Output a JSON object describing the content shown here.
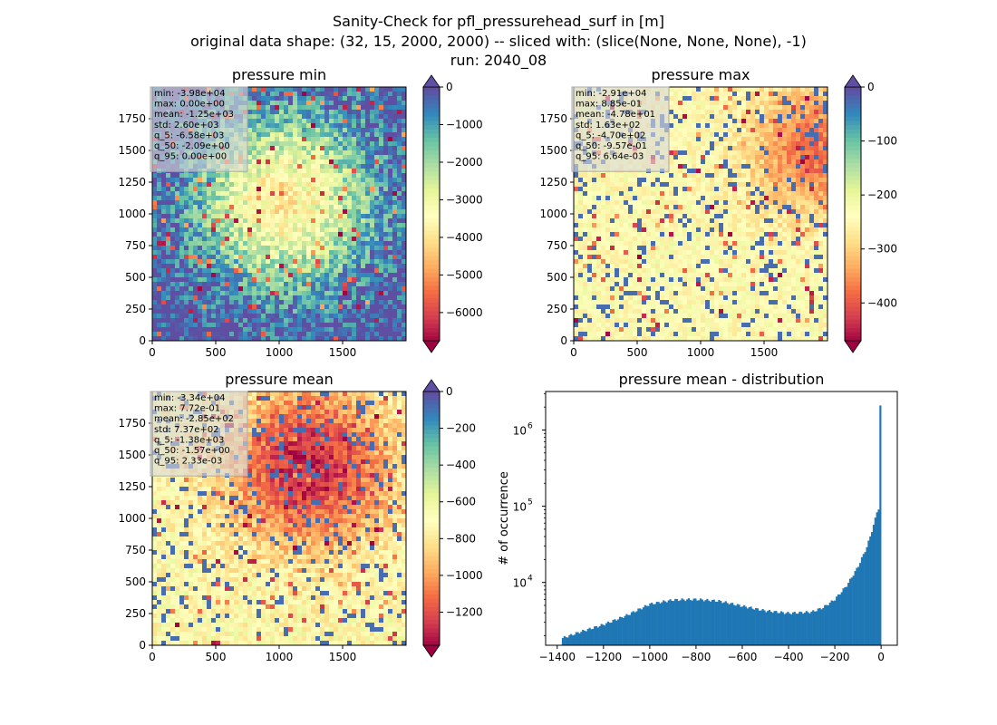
{
  "suptitle": [
    "Sanity-Check for pfl_pressurehead_surf in [m]",
    "original data shape: (32, 15, 2000, 2000) -- sliced with: (slice(None, None, None), -1)",
    "run: 2040_08"
  ],
  "colors": {
    "spectral_dark_red": "#9e0142",
    "spectral_yellow": "#fefebd",
    "spectral_blue": "#5e4fa2",
    "hist_bar": "#1f77b4",
    "stats_box": "#d9d9d9"
  },
  "chart_data": [
    {
      "type": "heatmap",
      "title": "pressure min",
      "xlabel": "",
      "ylabel": "",
      "xlim": [
        0,
        2000
      ],
      "ylim": [
        0,
        2000
      ],
      "x_ticks": [
        0,
        500,
        1000,
        1500
      ],
      "y_ticks": [
        0,
        250,
        500,
        750,
        1000,
        1250,
        1500,
        1750
      ],
      "colormap": "Spectral",
      "colorbar": {
        "vmin": -6750,
        "vmax": 0,
        "ticks": [
          0,
          -1000,
          -2000,
          -3000,
          -4000,
          -5000,
          -6000
        ],
        "extend": "both"
      },
      "stats": [
        "min: -3.98e+04",
        "max: 0.00e+00",
        "mean: -1.25e+03",
        "std: 2.60e+03",
        "q_5: -6.58e+03",
        "q_50: -2.09e+00",
        "q_95: 0.00e+00"
      ],
      "field": {
        "base": 1.0,
        "hot_amp": 0.55,
        "hot_center": [
          0.52,
          0.45
        ],
        "hot_radius": 0.24,
        "blend": 0.35,
        "seed": 11
      }
    },
    {
      "type": "heatmap",
      "title": "pressure max",
      "xlabel": "",
      "ylabel": "",
      "xlim": [
        0,
        2000
      ],
      "ylim": [
        0,
        2000
      ],
      "x_ticks": [
        0,
        500,
        1000,
        1500
      ],
      "y_ticks": [
        0,
        250,
        500,
        750,
        1000,
        1250,
        1500,
        1750
      ],
      "colormap": "Spectral",
      "colorbar": {
        "vmin": -470,
        "vmax": 0,
        "ticks": [
          0,
          -100,
          -200,
          -300,
          -400
        ],
        "extend": "both"
      },
      "stats": [
        "min: -2.91e+04",
        "max: 8.85e-01",
        "mean: -4.78e+01",
        "std: 1.63e+02",
        "q_5: -4.70e+02",
        "q_50: -9.57e-01",
        "q_95: 6.64e-03"
      ],
      "field": {
        "base": 0.5,
        "hot_amp": 0.3,
        "hot_center": [
          0.95,
          0.25
        ],
        "hot_radius": 0.18,
        "blend": 0.1,
        "seed": 23
      }
    },
    {
      "type": "heatmap",
      "title": "pressure mean",
      "xlabel": "",
      "ylabel": "",
      "xlim": [
        0,
        2000
      ],
      "ylim": [
        0,
        2000
      ],
      "x_ticks": [
        0,
        500,
        1000,
        1500
      ],
      "y_ticks": [
        0,
        250,
        500,
        750,
        1000,
        1250,
        1500,
        1750
      ],
      "colormap": "Spectral",
      "colorbar": {
        "vmin": -1380,
        "vmax": 0,
        "ticks": [
          0,
          -200,
          -400,
          -600,
          -800,
          -1000,
          -1200
        ],
        "extend": "both"
      },
      "stats": [
        "min: -3.34e+04",
        "max: 7.72e-01",
        "mean: -2.85e+02",
        "std: 7.37e+02",
        "q_5: -1.38e+03",
        "q_50: -1.57e+00",
        "q_95: 2.33e-03"
      ],
      "field": {
        "base": 0.5,
        "hot_amp": 0.45,
        "hot_center": [
          0.62,
          0.3
        ],
        "hot_radius": 0.22,
        "blend": 0.2,
        "seed": 37
      }
    },
    {
      "type": "bar",
      "title": "pressure mean - distribution",
      "xlabel": "",
      "ylabel": "# of occurrence",
      "xlim": [
        -1450,
        70
      ],
      "x_ticks": [
        -1400,
        -1200,
        -1000,
        -800,
        -600,
        -400,
        -200,
        0
      ],
      "y_scale": "log",
      "ylim": [
        1500,
        3200000
      ],
      "y_ticks": [
        10000,
        100000,
        1000000
      ],
      "bins": {
        "start": -1380,
        "end": 0,
        "count": 190
      },
      "profile": [
        [
          -1380,
          1850
        ],
        [
          -1300,
          2250
        ],
        [
          -1200,
          2800
        ],
        [
          -1100,
          3700
        ],
        [
          -1000,
          5200
        ],
        [
          -900,
          5900
        ],
        [
          -800,
          6000
        ],
        [
          -700,
          5700
        ],
        [
          -600,
          4900
        ],
        [
          -500,
          4250
        ],
        [
          -400,
          3950
        ],
        [
          -300,
          4100
        ],
        [
          -250,
          4700
        ],
        [
          -200,
          6000
        ],
        [
          -150,
          9000
        ],
        [
          -100,
          16000
        ],
        [
          -60,
          30000
        ],
        [
          -30,
          60000
        ],
        [
          -20,
          80000
        ],
        [
          -12,
          95000
        ],
        [
          -8,
          80000
        ],
        [
          -4,
          120000
        ],
        [
          0,
          2100000
        ]
      ]
    }
  ]
}
